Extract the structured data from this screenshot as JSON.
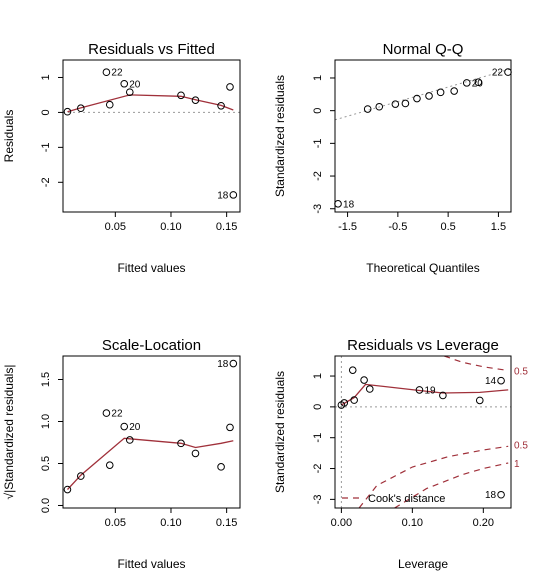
{
  "chart_data": [
    {
      "type": "scatter",
      "title": "Residuals vs Fitted",
      "xlabel": "Fitted values",
      "ylabel": "Residuals",
      "xlim": [
        0.003,
        0.162
      ],
      "ylim": [
        -2.85,
        1.5
      ],
      "xticks": [
        0.05,
        0.1,
        0.15
      ],
      "xtick_labels": [
        "0.05",
        "0.10",
        "0.15"
      ],
      "yticks": [
        -2,
        -1,
        0,
        1
      ],
      "ytick_labels": [
        "-2",
        "-1",
        "0",
        "1"
      ],
      "points": [
        {
          "x": 0.007,
          "y": 0.02
        },
        {
          "x": 0.019,
          "y": 0.12
        },
        {
          "x": 0.042,
          "y": 1.15,
          "label": "22"
        },
        {
          "x": 0.045,
          "y": 0.22
        },
        {
          "x": 0.058,
          "y": 0.82,
          "label": "20"
        },
        {
          "x": 0.063,
          "y": 0.58
        },
        {
          "x": 0.109,
          "y": 0.49
        },
        {
          "x": 0.122,
          "y": 0.35
        },
        {
          "x": 0.145,
          "y": 0.19
        },
        {
          "x": 0.153,
          "y": 0.73
        },
        {
          "x": 0.156,
          "y": -2.36,
          "label": "18"
        }
      ],
      "smooth": [
        [
          0.007,
          0.02
        ],
        [
          0.019,
          0.13
        ],
        [
          0.063,
          0.5
        ],
        [
          0.109,
          0.46
        ],
        [
          0.122,
          0.36
        ],
        [
          0.145,
          0.2
        ],
        [
          0.156,
          0.07
        ]
      ],
      "refline": {
        "kind": "h",
        "value": 0
      }
    },
    {
      "type": "scatter",
      "title": "Normal Q-Q",
      "xlabel": "Theoretical Quantiles",
      "ylabel": "Standardized residuals",
      "xlim": [
        -1.75,
        1.75
      ],
      "ylim": [
        -3.1,
        1.55
      ],
      "xticks": [
        -1.5,
        -0.5,
        0.5,
        1.5
      ],
      "xtick_labels": [
        "-1.5",
        "-0.5",
        "0.5",
        "1.5"
      ],
      "yticks": [
        -3,
        -2,
        -1,
        0,
        1
      ],
      "ytick_labels": [
        "-3",
        "-2",
        "-1",
        "0",
        "1"
      ],
      "points": [
        {
          "x": -1.69,
          "y": -2.85,
          "label": "18"
        },
        {
          "x": -1.1,
          "y": 0.05
        },
        {
          "x": -0.87,
          "y": 0.12
        },
        {
          "x": -0.55,
          "y": 0.2
        },
        {
          "x": -0.35,
          "y": 0.22
        },
        {
          "x": -0.12,
          "y": 0.37
        },
        {
          "x": 0.12,
          "y": 0.45
        },
        {
          "x": 0.35,
          "y": 0.56
        },
        {
          "x": 0.62,
          "y": 0.6
        },
        {
          "x": 0.87,
          "y": 0.85,
          "label": "20"
        },
        {
          "x": 1.1,
          "y": 0.87
        },
        {
          "x": 1.69,
          "y": 1.18,
          "label": "22"
        }
      ],
      "refline": {
        "kind": "line",
        "from": [
          -1.75,
          -0.28
        ],
        "to": [
          1.75,
          1.28
        ]
      }
    },
    {
      "type": "scatter",
      "title": "Scale-Location",
      "xlabel": "Fitted values",
      "ylabel": "√|Standardized residuals|",
      "xlim": [
        0.003,
        0.162
      ],
      "ylim": [
        -0.03,
        1.78
      ],
      "xticks": [
        0.05,
        0.1,
        0.15
      ],
      "xtick_labels": [
        "0.05",
        "0.10",
        "0.15"
      ],
      "yticks": [
        0.0,
        0.5,
        1.0,
        1.5
      ],
      "ytick_labels": [
        "0.0",
        "0.5",
        "1.0",
        "1.5"
      ],
      "points": [
        {
          "x": 0.007,
          "y": 0.19
        },
        {
          "x": 0.019,
          "y": 0.35
        },
        {
          "x": 0.042,
          "y": 1.1,
          "label": "22"
        },
        {
          "x": 0.045,
          "y": 0.48
        },
        {
          "x": 0.058,
          "y": 0.94,
          "label": "20"
        },
        {
          "x": 0.063,
          "y": 0.78
        },
        {
          "x": 0.109,
          "y": 0.74
        },
        {
          "x": 0.122,
          "y": 0.62
        },
        {
          "x": 0.145,
          "y": 0.46
        },
        {
          "x": 0.153,
          "y": 0.93
        },
        {
          "x": 0.156,
          "y": 1.69,
          "label": "18"
        }
      ],
      "smooth": [
        [
          0.007,
          0.19
        ],
        [
          0.019,
          0.36
        ],
        [
          0.058,
          0.8
        ],
        [
          0.109,
          0.74
        ],
        [
          0.122,
          0.69
        ],
        [
          0.145,
          0.74
        ],
        [
          0.156,
          0.77
        ]
      ]
    },
    {
      "type": "scatter",
      "title": "Residuals vs Leverage",
      "xlabel": "Leverage",
      "ylabel": "Standardized residuals",
      "xlim": [
        -0.009,
        0.239
      ],
      "ylim": [
        -3.28,
        1.65
      ],
      "xticks": [
        0.0,
        0.1,
        0.2
      ],
      "xtick_labels": [
        "0.00",
        "0.10",
        "0.20"
      ],
      "yticks": [
        -3,
        -2,
        -1,
        0,
        1
      ],
      "ytick_labels": [
        "-3",
        "-2",
        "-1",
        "0",
        "1"
      ],
      "points": [
        {
          "x": 0.0,
          "y": 0.06
        },
        {
          "x": 0.004,
          "y": 0.13
        },
        {
          "x": 0.016,
          "y": 1.19
        },
        {
          "x": 0.018,
          "y": 0.22
        },
        {
          "x": 0.032,
          "y": 0.87
        },
        {
          "x": 0.04,
          "y": 0.58
        },
        {
          "x": 0.11,
          "y": 0.55,
          "label": "19"
        },
        {
          "x": 0.143,
          "y": 0.37
        },
        {
          "x": 0.195,
          "y": 0.21
        },
        {
          "x": 0.225,
          "y": 0.85,
          "label": "14"
        },
        {
          "x": 0.225,
          "y": -2.85,
          "label": "18"
        }
      ],
      "smooth": [
        [
          0.0,
          0.06
        ],
        [
          0.018,
          0.3
        ],
        [
          0.034,
          0.73
        ],
        [
          0.11,
          0.53
        ],
        [
          0.143,
          0.45
        ],
        [
          0.195,
          0.47
        ],
        [
          0.235,
          0.55
        ]
      ],
      "cook_levels": [
        "0.5",
        "1"
      ],
      "cook_curves": [
        {
          "label": "0.5",
          "points": [
            [
              0.145,
              1.65
            ],
            [
              0.17,
              1.45
            ],
            [
              0.2,
              1.3
            ],
            [
              0.235,
              1.18
            ]
          ]
        },
        {
          "label": "0.5",
          "points": [
            [
              0.025,
              -3.28
            ],
            [
              0.05,
              -2.55
            ],
            [
              0.1,
              -1.95
            ],
            [
              0.15,
              -1.62
            ],
            [
              0.2,
              -1.4
            ],
            [
              0.235,
              -1.28
            ]
          ]
        },
        {
          "label": "1",
          "points": [
            [
              0.075,
              -3.28
            ],
            [
              0.12,
              -2.65
            ],
            [
              0.17,
              -2.2
            ],
            [
              0.2,
              -2.0
            ],
            [
              0.235,
              -1.82
            ]
          ]
        }
      ],
      "legend": {
        "label": "Cook's distance",
        "position": "bottom-left"
      }
    }
  ]
}
